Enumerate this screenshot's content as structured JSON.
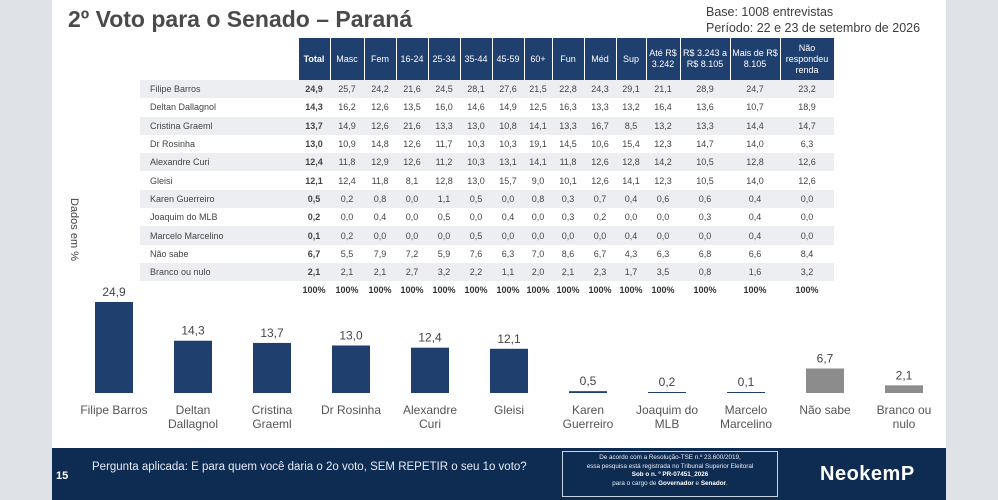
{
  "slide": {
    "title": "2º Voto para o Senado – Paraná",
    "base": "Base: 1008 entrevistas",
    "periodo": "Período: 22 e 23 de setembro de 2026",
    "yaxis_label": "Dados em %",
    "page_number": "15",
    "question": "Pergunta aplicada: E para quem você daria o 2o voto, SEM REPETIR o seu 1o voto?",
    "tse_notice": {
      "line1": "De acordo com a Resolução-TSE n.º 23.600/2019,",
      "line2": "essa pesquisa está registrada no Tribunal Superior Eleitoral",
      "line3": "Sob o n. º PR-07451_2026",
      "line4_pre": "para o cargo de ",
      "line4_bold1": "Governador",
      "line4_mid": " e ",
      "line4_bold2": "Senador",
      "line4_post": "."
    },
    "logo": "NeokemP"
  },
  "table": {
    "headers": [
      "Total",
      "Masc",
      "Fem",
      "16-24",
      "25-34",
      "35-44",
      "45-59",
      "60+",
      "Fun",
      "Méd",
      "Sup",
      "Até R$ 3.242",
      "R$ 3.243 a R$ 8.105",
      "Mais de R$ 8.105",
      "Não respondeu renda"
    ],
    "rows": [
      {
        "name": "Filipe Barros",
        "values": [
          "24,9",
          "25,7",
          "24,2",
          "21,6",
          "24,5",
          "28,1",
          "27,6",
          "21,5",
          "22,8",
          "24,3",
          "29,1",
          "21,1",
          "28,9",
          "24,7",
          "23,2"
        ]
      },
      {
        "name": "Deltan Dallagnol",
        "values": [
          "14,3",
          "16,2",
          "12,6",
          "13,5",
          "16,0",
          "14,6",
          "14,9",
          "12,5",
          "16,3",
          "13,3",
          "13,2",
          "16,4",
          "13,6",
          "10,7",
          "18,9"
        ]
      },
      {
        "name": "Cristina Graeml",
        "values": [
          "13,7",
          "14,9",
          "12,6",
          "21,6",
          "13,3",
          "13,0",
          "10,8",
          "14,1",
          "13,3",
          "16,7",
          "8,5",
          "13,2",
          "13,3",
          "14,4",
          "14,7"
        ]
      },
      {
        "name": "Dr Rosinha",
        "values": [
          "13,0",
          "10,9",
          "14,8",
          "12,6",
          "11,7",
          "10,3",
          "10,3",
          "19,1",
          "14,5",
          "10,6",
          "15,4",
          "12,3",
          "14,7",
          "14,0",
          "6,3"
        ]
      },
      {
        "name": "Alexandre Curi",
        "values": [
          "12,4",
          "11,8",
          "12,9",
          "12,6",
          "11,2",
          "10,3",
          "13,1",
          "14,1",
          "11,8",
          "12,6",
          "12,8",
          "14,2",
          "10,5",
          "12,8",
          "12,6"
        ]
      },
      {
        "name": "Gleisi",
        "values": [
          "12,1",
          "12,4",
          "11,8",
          "8,1",
          "12,8",
          "13,0",
          "15,7",
          "9,0",
          "10,1",
          "12,6",
          "14,1",
          "12,3",
          "10,5",
          "14,0",
          "12,6"
        ]
      },
      {
        "name": "Karen Guerreiro",
        "values": [
          "0,5",
          "0,2",
          "0,8",
          "0,0",
          "1,1",
          "0,5",
          "0,0",
          "0,8",
          "0,3",
          "0,7",
          "0,4",
          "0,6",
          "0,6",
          "0,4",
          "0,0"
        ]
      },
      {
        "name": "Joaquim do MLB",
        "values": [
          "0,2",
          "0,0",
          "0,4",
          "0,0",
          "0,5",
          "0,0",
          "0,4",
          "0,0",
          "0,3",
          "0,2",
          "0,0",
          "0,0",
          "0,3",
          "0,4",
          "0,0"
        ]
      },
      {
        "name": "Marcelo Marcelino",
        "values": [
          "0,1",
          "0,2",
          "0,0",
          "0,0",
          "0,0",
          "0,5",
          "0,0",
          "0,0",
          "0,0",
          "0,0",
          "0,4",
          "0,0",
          "0,0",
          "0,4",
          "0,0"
        ]
      },
      {
        "name": "Não sabe",
        "values": [
          "6,7",
          "5,5",
          "7,9",
          "7,2",
          "5,9",
          "7,6",
          "6,3",
          "7,0",
          "8,6",
          "6,7",
          "4,3",
          "6,3",
          "6,8",
          "6,6",
          "8,4"
        ]
      },
      {
        "name": "Branco ou nulo",
        "values": [
          "2,1",
          "2,1",
          "2,1",
          "2,7",
          "3,2",
          "2,2",
          "1,1",
          "2,0",
          "2,1",
          "2,3",
          "1,7",
          "3,5",
          "0,8",
          "1,6",
          "3,2"
        ]
      }
    ],
    "footer": [
      "100%",
      "100%",
      "100%",
      "100%",
      "100%",
      "100%",
      "100%",
      "100%",
      "100%",
      "100%",
      "100%",
      "100%",
      "100%",
      "100%",
      "100%"
    ]
  },
  "chart_data": {
    "type": "bar",
    "title": "2º Voto para o Senado – Paraná",
    "ylabel": "Dados em %",
    "ylim": [
      0,
      24.9
    ],
    "categories": [
      "Filipe Barros",
      "Deltan Dallagnol",
      "Cristina Graeml",
      "Dr Rosinha",
      "Alexandre Curi",
      "Gleisi",
      "Karen Guerreiro",
      "Joaquim do MLB",
      "Marcelo Marcelino",
      "Não sabe",
      "Branco ou nulo"
    ],
    "category_lines": [
      [
        "Filipe Barros"
      ],
      [
        "Deltan",
        "Dallagnol"
      ],
      [
        "Cristina",
        "Graeml"
      ],
      [
        "Dr Rosinha"
      ],
      [
        "Alexandre",
        "Curi"
      ],
      [
        "Gleisi"
      ],
      [
        "Karen",
        "Guerreiro"
      ],
      [
        "Joaquim do",
        "MLB"
      ],
      [
        "Marcelo",
        "Marcelino"
      ],
      [
        "Não sabe"
      ],
      [
        "Branco ou",
        "nulo"
      ]
    ],
    "values": [
      24.9,
      14.3,
      13.7,
      13.0,
      12.4,
      12.1,
      0.5,
      0.2,
      0.1,
      6.7,
      2.1
    ],
    "value_labels": [
      "24,9",
      "14,3",
      "13,7",
      "13,0",
      "12,4",
      "12,1",
      "0,5",
      "0,2",
      "0,1",
      "6,7",
      "2,1"
    ],
    "colors": [
      "#1f3f6e",
      "#1f3f6e",
      "#1f3f6e",
      "#1f3f6e",
      "#1f3f6e",
      "#1f3f6e",
      "#1f3f6e",
      "#1f3f6e",
      "#1f3f6e",
      "#8c8c8c",
      "#8c8c8c"
    ],
    "grid": false,
    "legend": "none"
  }
}
